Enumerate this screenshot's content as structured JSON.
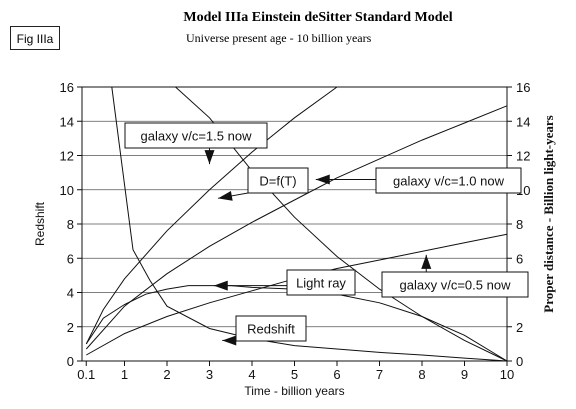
{
  "figure": {
    "label": "Fig IIIa"
  },
  "chart_data": {
    "type": "line",
    "title": "Model IIIa  Einstein deSitter Standard Model",
    "subtitle": "Universe present age - 10 billion years",
    "xlabel": "Time - billion years",
    "ylabel_left": "Redshift",
    "ylabel_right": "Proper distance - Billion light-years",
    "xlim": [
      0,
      10
    ],
    "ylim": [
      0,
      16
    ],
    "x_ticks": [
      "0.1",
      "1",
      "2",
      "3",
      "4",
      "5",
      "6",
      "7",
      "8",
      "9",
      "10"
    ],
    "y_ticks": [
      "0",
      "2",
      "4",
      "6",
      "8",
      "10",
      "12",
      "14",
      "16"
    ],
    "grid": "horizontal",
    "series": [
      {
        "id": "redshift",
        "points": [
          [
            0.7,
            16
          ],
          [
            1.2,
            6.5
          ],
          [
            1.6,
            4.7
          ],
          [
            2,
            3.2
          ],
          [
            3,
            1.9
          ],
          [
            4,
            1.3
          ],
          [
            5,
            0.9
          ],
          [
            6,
            0.7
          ],
          [
            7,
            0.5
          ],
          [
            8,
            0.35
          ],
          [
            9,
            0.17
          ],
          [
            10,
            0
          ]
        ]
      },
      {
        "id": "light-ray",
        "points": [
          [
            0.1,
            1.0
          ],
          [
            0.5,
            2.5
          ],
          [
            1,
            3.3
          ],
          [
            1.5,
            3.9
          ],
          [
            2,
            4.2
          ],
          [
            2.5,
            4.4
          ],
          [
            3,
            4.4
          ],
          [
            3.5,
            4.4
          ],
          [
            4,
            4.3
          ],
          [
            5,
            4.2
          ],
          [
            6,
            3.9
          ],
          [
            7,
            3.4
          ],
          [
            8,
            2.6
          ],
          [
            9,
            1.5
          ],
          [
            10,
            0
          ]
        ]
      },
      {
        "id": "galaxy-0.5",
        "points": [
          [
            0.1,
            0.35
          ],
          [
            1,
            1.6
          ],
          [
            2,
            2.6
          ],
          [
            3,
            3.4
          ],
          [
            4,
            4.1
          ],
          [
            5,
            4.8
          ],
          [
            6,
            5.4
          ],
          [
            7,
            5.9
          ],
          [
            8,
            6.4
          ],
          [
            9,
            6.9
          ],
          [
            10,
            7.4
          ]
        ]
      },
      {
        "id": "galaxy-1.0",
        "points": [
          [
            0.1,
            0.7
          ],
          [
            1,
            3.2
          ],
          [
            2,
            5.1
          ],
          [
            3,
            6.7
          ],
          [
            4,
            8.1
          ],
          [
            5,
            9.4
          ],
          [
            6,
            10.7
          ],
          [
            7,
            11.8
          ],
          [
            8,
            12.9
          ],
          [
            9,
            13.9
          ],
          [
            10,
            14.9
          ]
        ]
      },
      {
        "id": "galaxy-1.5",
        "points": [
          [
            0.1,
            1.0
          ],
          [
            0.5,
            3
          ],
          [
            1,
            4.8
          ],
          [
            2,
            7.6
          ],
          [
            3,
            10.0
          ],
          [
            4,
            12.2
          ],
          [
            5,
            14.2
          ],
          [
            6,
            16.0
          ]
        ]
      },
      {
        "id": "d-f-t",
        "points": [
          [
            2.2,
            16
          ],
          [
            3,
            14.2
          ],
          [
            4,
            11.1
          ],
          [
            5,
            8.4
          ],
          [
            6,
            6.1
          ],
          [
            7,
            4.2
          ],
          [
            8,
            2.6
          ],
          [
            9,
            1.2
          ],
          [
            10,
            0
          ]
        ]
      }
    ],
    "annotations": [
      {
        "id": "galaxy-1.5",
        "text": "galaxy v/c=1.5 now",
        "target": [
          3.0,
          11.5
        ]
      },
      {
        "id": "dft",
        "text": "D=f(T)",
        "target": [
          3.2,
          9.5
        ]
      },
      {
        "id": "galaxy-1.0",
        "text": "galaxy v/c=1.0 now",
        "target": [
          5.5,
          10.6
        ]
      },
      {
        "id": "light-ray",
        "text": "Light ray",
        "target": [
          3.1,
          4.4
        ]
      },
      {
        "id": "galaxy-0.5",
        "text": "galaxy v/c=0.5 now",
        "target": [
          8.1,
          6.2
        ]
      },
      {
        "id": "redshift",
        "text": "Redshift",
        "target": [
          3.3,
          1.2
        ]
      }
    ]
  }
}
